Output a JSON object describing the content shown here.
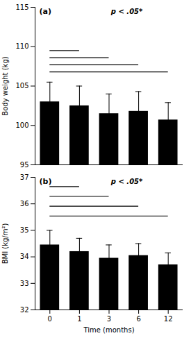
{
  "chart_data": [
    {
      "type": "bar",
      "categories": [
        "0",
        "1",
        "3",
        "6",
        "12"
      ],
      "values": [
        103.0,
        102.5,
        101.5,
        101.8,
        100.7
      ],
      "errors": [
        2.5,
        2.5,
        2.5,
        2.5,
        2.2
      ],
      "color": "#000000",
      "ylim": [
        95,
        115
      ],
      "yticks": [
        95,
        100,
        105,
        110,
        115
      ],
      "ylabel": "Body weight (kg)",
      "panel_label": "(a)",
      "annotation": "p < .05*",
      "significance_lines": [
        {
          "y": 109.5,
          "from": "0",
          "to": "1"
        },
        {
          "y": 108.6,
          "from": "0",
          "to": "3"
        },
        {
          "y": 107.7,
          "from": "0",
          "to": "6"
        },
        {
          "y": 106.8,
          "from": "0",
          "to": "12"
        }
      ],
      "grid": false,
      "tick_labels": "y"
    },
    {
      "type": "bar",
      "categories": [
        "0",
        "1",
        "3",
        "6",
        "12"
      ],
      "values": [
        34.45,
        34.2,
        33.95,
        34.05,
        33.7
      ],
      "errors": [
        0.55,
        0.5,
        0.5,
        0.45,
        0.45
      ],
      "color": "#000000",
      "ylim": [
        32,
        37
      ],
      "yticks": [
        32,
        33,
        34,
        35,
        36,
        37
      ],
      "ylabel": "BMI (kg/m²)",
      "xlabel": "Time (months)",
      "panel_label": "(b)",
      "annotation": "p < .05*",
      "significance_lines": [
        {
          "y": 36.65,
          "from": "0",
          "to": "1"
        },
        {
          "y": 36.28,
          "from": "0",
          "to": "3"
        },
        {
          "y": 35.91,
          "from": "0",
          "to": "6"
        },
        {
          "y": 35.54,
          "from": "0",
          "to": "12"
        }
      ],
      "grid": false
    }
  ]
}
